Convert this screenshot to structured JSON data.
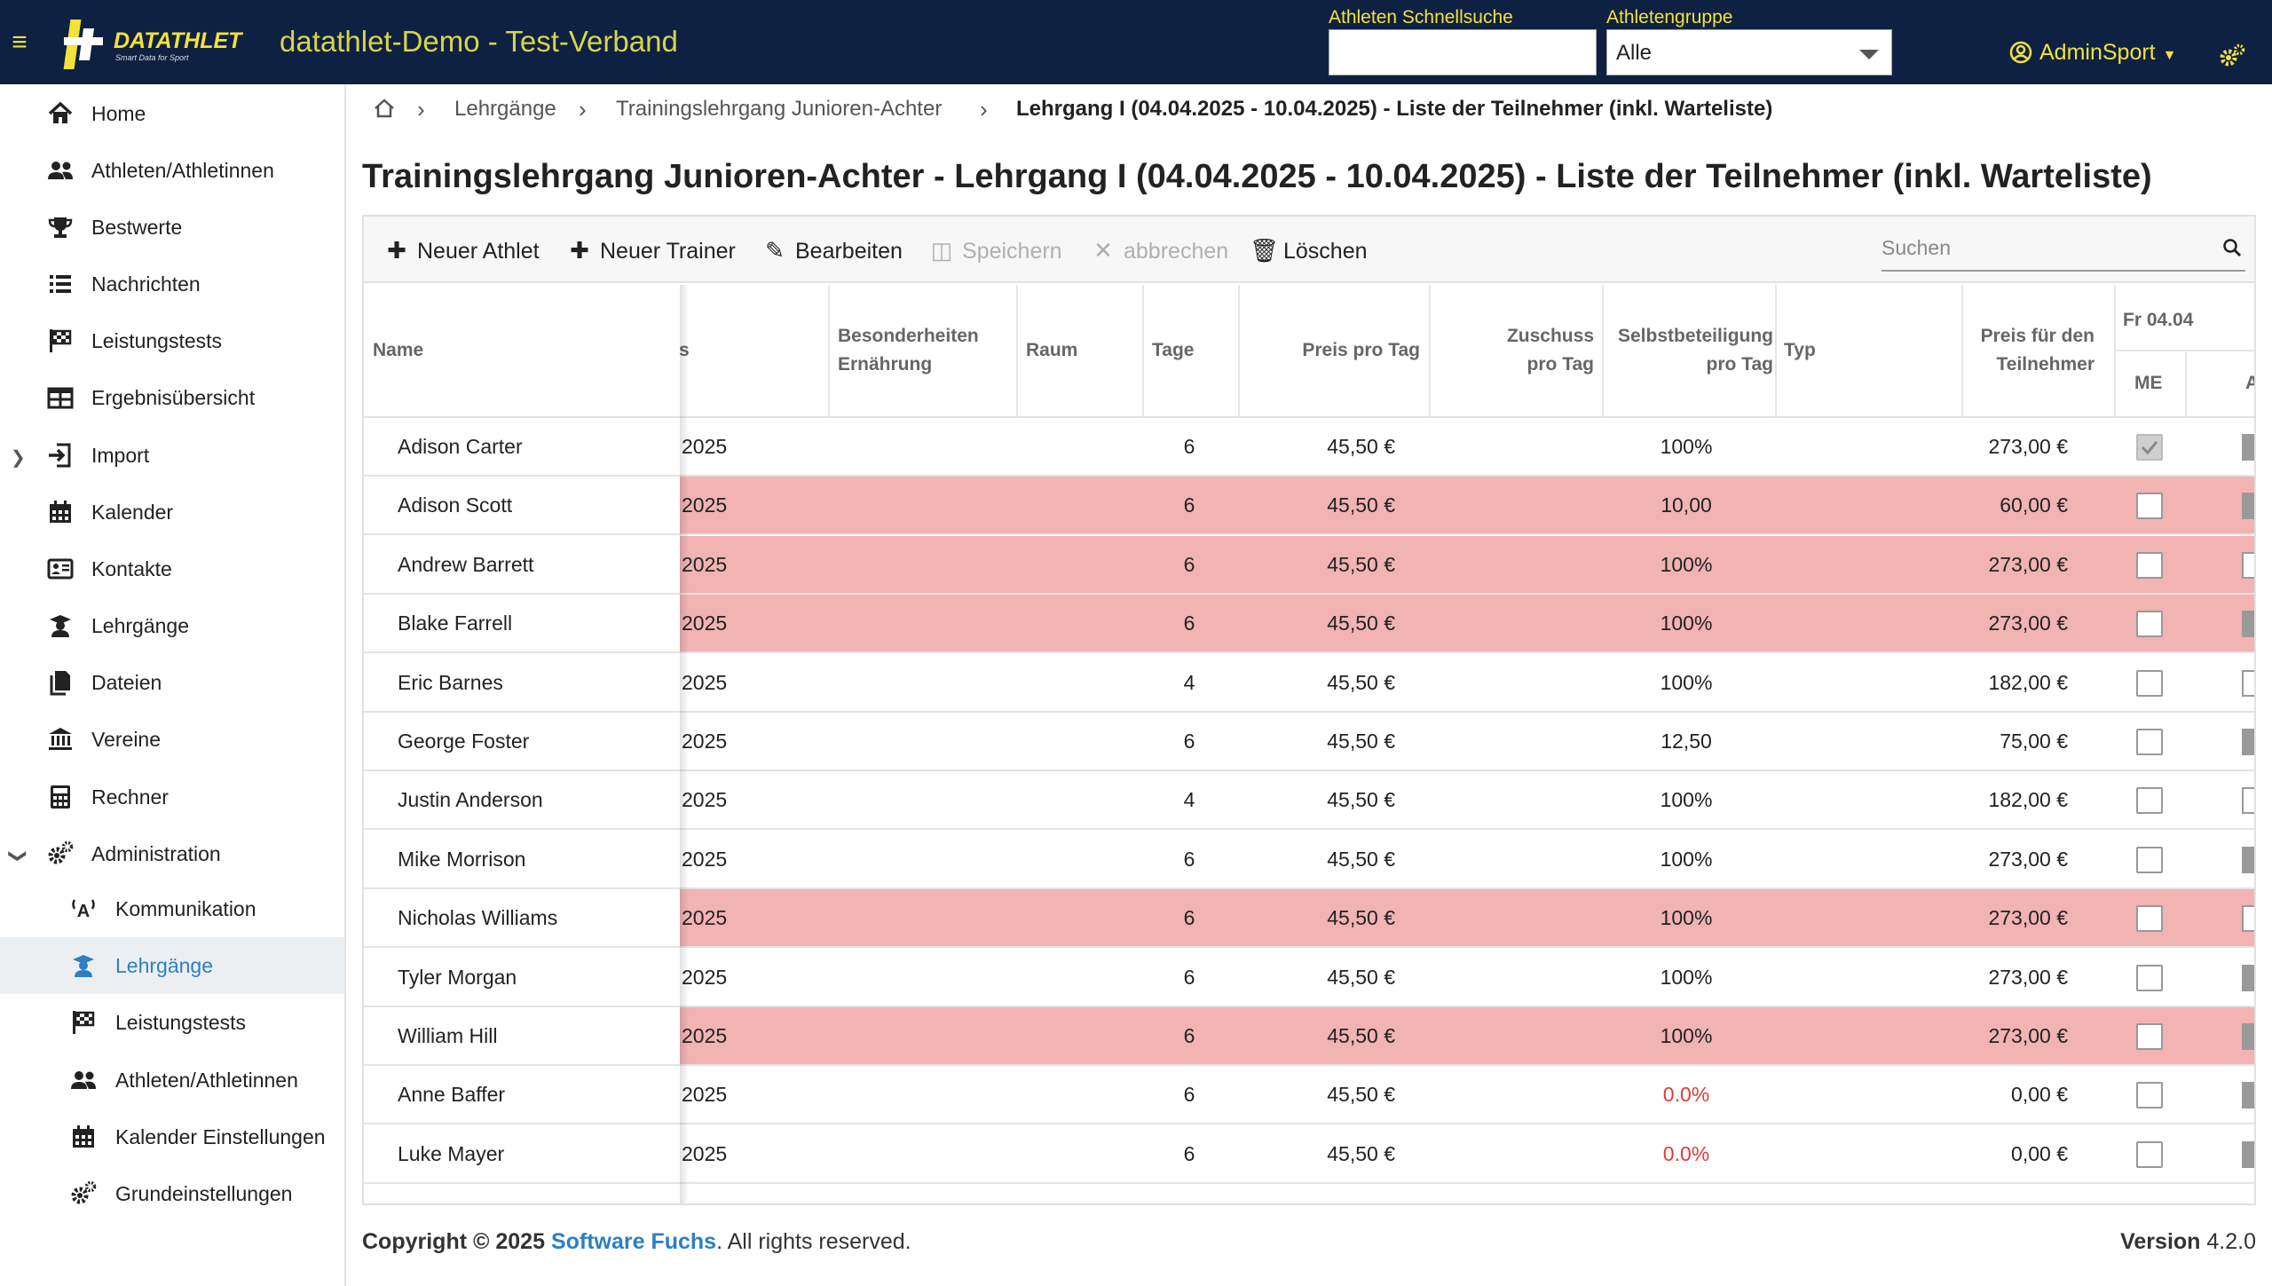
{
  "app": {
    "logo_text": "DATATHLET",
    "logo_sub": "Smart Data for Sport",
    "title": "datathlet-Demo - Test-Verband"
  },
  "header": {
    "quicksearch_label": "Athleten Schnellsuche",
    "quicksearch_value": "",
    "group_label": "Athletengruppe",
    "group_value": "Alle",
    "user": "AdminSport"
  },
  "nav": [
    {
      "label": "Home",
      "icon": "home-icon"
    },
    {
      "label": "Athleten/Athletinnen",
      "icon": "users-icon"
    },
    {
      "label": "Bestwerte",
      "icon": "trophy-icon"
    },
    {
      "label": "Nachrichten",
      "icon": "list-icon"
    },
    {
      "label": "Leistungstests",
      "icon": "flag-checkered-icon"
    },
    {
      "label": "Ergebnisübersicht",
      "icon": "table-icon"
    },
    {
      "label": "Import",
      "icon": "import-icon"
    },
    {
      "label": "Kalender",
      "icon": "calendar-icon"
    },
    {
      "label": "Kontakte",
      "icon": "contact-card-icon"
    },
    {
      "label": "Lehrgänge",
      "icon": "graduate-icon"
    },
    {
      "label": "Dateien",
      "icon": "files-icon"
    },
    {
      "label": "Vereine",
      "icon": "institution-icon"
    },
    {
      "label": "Rechner",
      "icon": "calculator-icon"
    },
    {
      "label": "Administration",
      "icon": "cogs-icon"
    },
    {
      "label": "Kommunikation",
      "icon": "broadcast-icon"
    },
    {
      "label": "Lehrgänge",
      "icon": "graduate-icon"
    },
    {
      "label": "Leistungstests",
      "icon": "flag-checkered-icon"
    },
    {
      "label": "Athleten/Athletinnen",
      "icon": "users-icon"
    },
    {
      "label": "Kalender Einstellungen",
      "icon": "calendar-icon"
    },
    {
      "label": "Grundeinstellungen",
      "icon": "cogs-icon"
    }
  ],
  "breadcrumb": [
    "Lehrgänge",
    "Trainingslehrgang Junioren-Achter",
    "Lehrgang I (04.04.2025 - 10.04.2025) - Liste der Teilnehmer (inkl. Warteliste)"
  ],
  "page_title": "Trainingslehrgang Junioren-Achter - Lehrgang I (04.04.2025 - 10.04.2025) - Liste der Teilnehmer (inkl. Warteliste)",
  "toolbar": {
    "new_athlete": "Neuer Athlet",
    "new_trainer": "Neuer Trainer",
    "edit": "Bearbeiten",
    "save": "Speichern",
    "cancel": "abbrechen",
    "delete": "Löschen",
    "search_placeholder": "Suchen"
  },
  "columns": {
    "name": "Name",
    "col_partial": "s",
    "ernaehrung": "Besonderheiten Ernährung",
    "raum": "Raum",
    "tage": "Tage",
    "preis_tag": "Preis pro Tag",
    "zuschuss": "Zuschuss pro Tag",
    "selbst": "Selbstbeteiligung pro Tag",
    "typ": "Typ",
    "preis_teil": "Preis für den Teilnehmer",
    "day_group": "Fr 04.04",
    "me": "ME",
    "a_partial": "A"
  },
  "rows": [
    {
      "name": "Adison Carter",
      "date": "2025",
      "tage": "6",
      "preis": "45,50 €",
      "selbst": "100%",
      "total": "273,00 €",
      "highlight": false,
      "me": true,
      "a": "g"
    },
    {
      "name": "Adison Scott",
      "date": "2025",
      "tage": "6",
      "preis": "45,50 €",
      "selbst": "10,00",
      "total": "60,00 €",
      "highlight": true,
      "me": false,
      "a": "g"
    },
    {
      "name": "Andrew Barrett",
      "date": "2025",
      "tage": "6",
      "preis": "45,50 €",
      "selbst": "100%",
      "total": "273,00 €",
      "highlight": true,
      "me": false,
      "a": "w"
    },
    {
      "name": "Blake Farrell",
      "date": "2025",
      "tage": "6",
      "preis": "45,50 €",
      "selbst": "100%",
      "total": "273,00 €",
      "highlight": true,
      "me": false,
      "a": "g"
    },
    {
      "name": "Eric Barnes",
      "date": "2025",
      "tage": "4",
      "preis": "45,50 €",
      "selbst": "100%",
      "total": "182,00 €",
      "highlight": false,
      "me": false,
      "a": "w"
    },
    {
      "name": "George Foster",
      "date": "2025",
      "tage": "6",
      "preis": "45,50 €",
      "selbst": "12,50",
      "total": "75,00 €",
      "highlight": false,
      "me": false,
      "a": "g"
    },
    {
      "name": "Justin Anderson",
      "date": "2025",
      "tage": "4",
      "preis": "45,50 €",
      "selbst": "100%",
      "total": "182,00 €",
      "highlight": false,
      "me": false,
      "a": "w"
    },
    {
      "name": "Mike Morrison",
      "date": "2025",
      "tage": "6",
      "preis": "45,50 €",
      "selbst": "100%",
      "total": "273,00 €",
      "highlight": false,
      "me": false,
      "a": "g"
    },
    {
      "name": "Nicholas Williams",
      "date": "2025",
      "tage": "6",
      "preis": "45,50 €",
      "selbst": "100%",
      "total": "273,00 €",
      "highlight": true,
      "me": false,
      "a": "w"
    },
    {
      "name": "Tyler Morgan",
      "date": "2025",
      "tage": "6",
      "preis": "45,50 €",
      "selbst": "100%",
      "total": "273,00 €",
      "highlight": false,
      "me": false,
      "a": "g"
    },
    {
      "name": "William Hill",
      "date": "2025",
      "tage": "6",
      "preis": "45,50 €",
      "selbst": "100%",
      "total": "273,00 €",
      "highlight": true,
      "me": false,
      "a": "g"
    },
    {
      "name": "Anne Baffer",
      "date": "2025",
      "tage": "6",
      "preis": "45,50 €",
      "selbst": "0.0%",
      "selbst_red": true,
      "total": "0,00 €",
      "highlight": false,
      "me": false,
      "a": "g"
    },
    {
      "name": "Luke Mayer",
      "date": "2025",
      "tage": "6",
      "preis": "45,50 €",
      "selbst": "0.0%",
      "selbst_red": true,
      "total": "0,00 €",
      "highlight": false,
      "me": false,
      "a": "g"
    }
  ],
  "footer": {
    "copyright": "Copyright © 2025",
    "company": "Software Fuchs",
    "rights": ". All rights reserved.",
    "version_label": "Version",
    "version": "4.2.0"
  },
  "colors": {
    "topbar": "#0e2142",
    "accent_yellow": "#f2e23a",
    "highlight_row": "#f2b3b3",
    "link_blue": "#2d7fc2",
    "error_red": "#e53935"
  }
}
